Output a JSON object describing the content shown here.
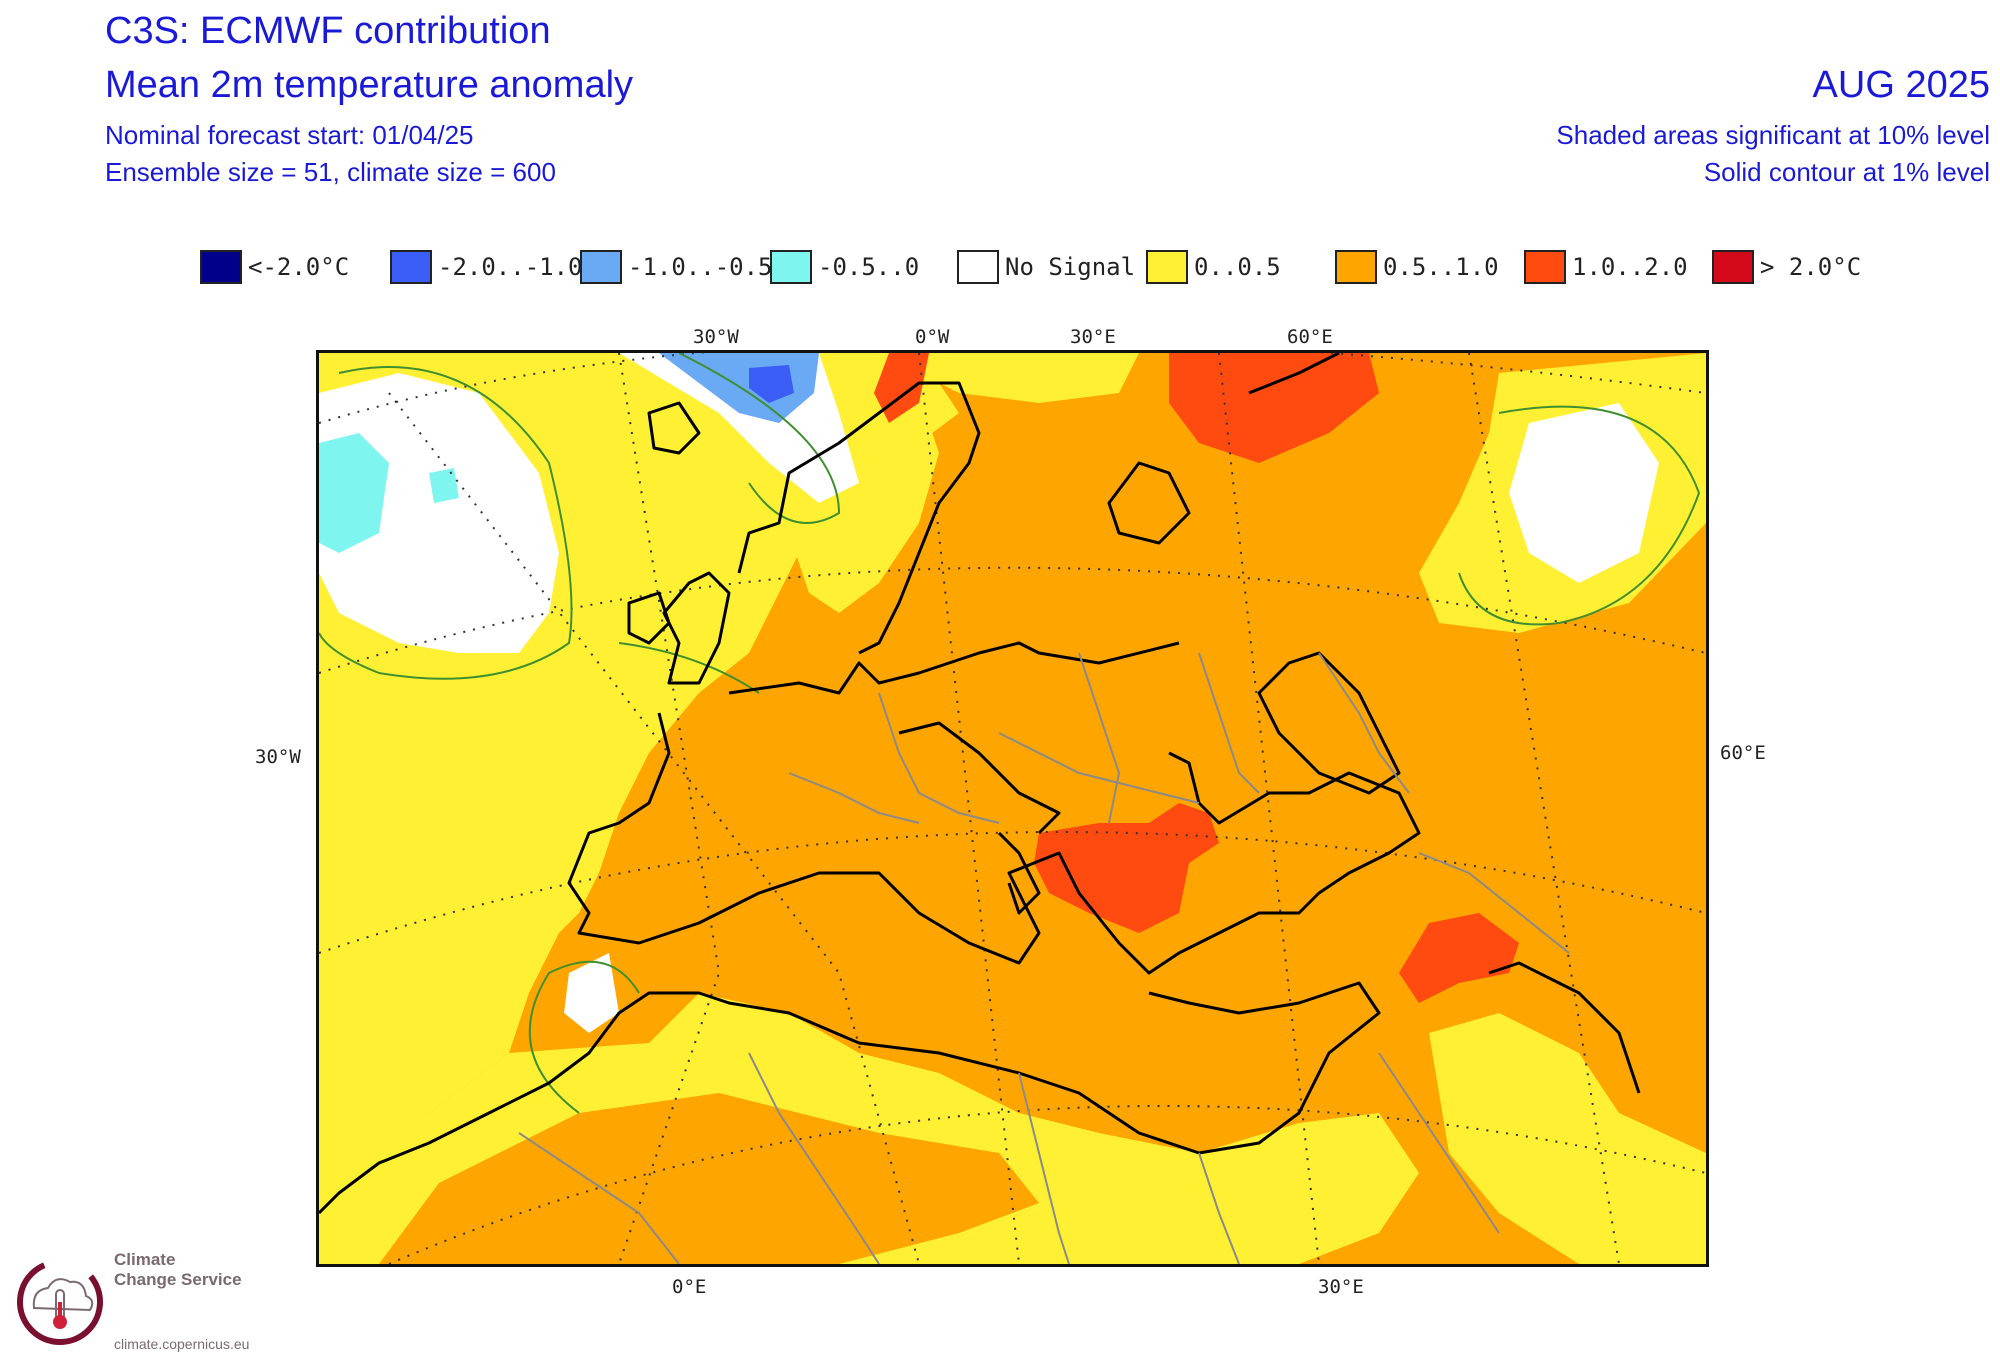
{
  "header": {
    "title": "C3S: ECMWF contribution",
    "subtitle": "Mean 2m temperature anomaly",
    "forecast_start": "Nominal forecast start: 01/04/25",
    "ensemble": "Ensemble size = 51, climate size = 600",
    "month": "AUG 2025",
    "significance_10": "Shaded areas significant at 10% level",
    "significance_1": "Solid contour at 1% level"
  },
  "legend": [
    {
      "label": "<-2.0°C",
      "color": "#00008b"
    },
    {
      "label": "-2.0..-1.0",
      "color": "#3a5ef5"
    },
    {
      "label": "-1.0..-0.5",
      "color": "#6aaaf5"
    },
    {
      "label": "-0.5..0",
      "color": "#7ff5f0"
    },
    {
      "label": "No Signal",
      "color": "#ffffff"
    },
    {
      "label": "0..0.5",
      "color": "#fff033"
    },
    {
      "label": "0.5..1.0",
      "color": "#ffa500"
    },
    {
      "label": "1.0..2.0",
      "color": "#ff4a10"
    },
    {
      "label": "> 2.0°C",
      "color": "#d40a1a"
    }
  ],
  "map_labels": {
    "top": [
      "30°W",
      "0°W",
      "30°E",
      "60°E"
    ],
    "left": "30°W",
    "right": "60°E",
    "bottom": [
      "0°E",
      "30°E"
    ]
  },
  "logo": {
    "name_line1": "Climate",
    "name_line2": "Change Service",
    "url": "climate.copernicus.eu"
  }
}
